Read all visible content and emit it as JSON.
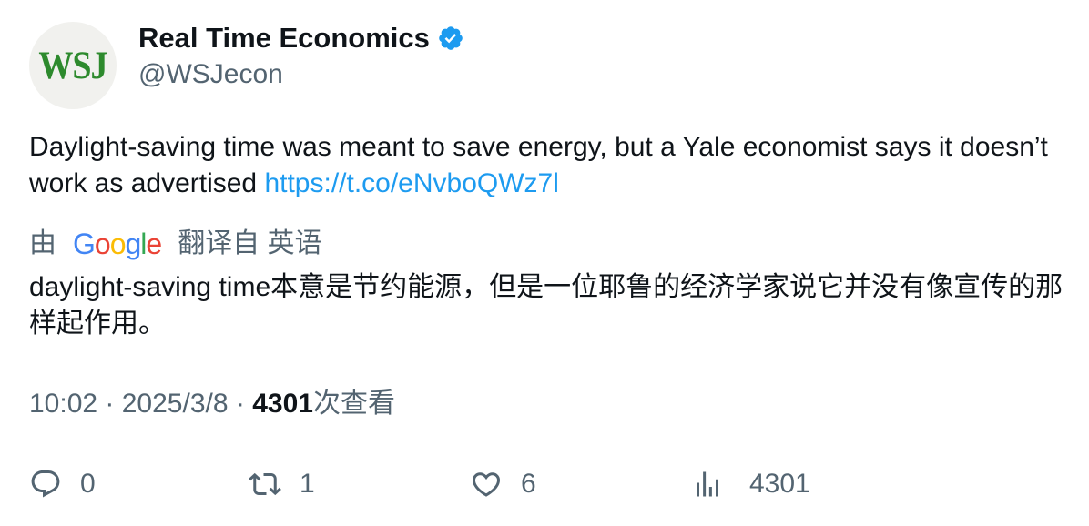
{
  "author": {
    "avatar_text": "WSJ",
    "display_name": "Real Time Economics",
    "handle": "@WSJecon",
    "verified": true
  },
  "tweet": {
    "text": "Daylight-saving time was meant to save energy, but a Yale economist says it doesn’t work as advertised ",
    "link": "https://t.co/eNvboQWz7l"
  },
  "translation": {
    "prefix": "由",
    "provider_letters": [
      "G",
      "o",
      "o",
      "g",
      "l",
      "e"
    ],
    "suffix": "翻译自 英语",
    "text": "daylight-saving time本意是节约能源，但是一位耶鲁的经济学家说它并没有像宣传的那样起作用。"
  },
  "meta": {
    "time": "10:02",
    "separator": " · ",
    "date": "2025/3/8",
    "views_count": "4301",
    "views_label": "次查看"
  },
  "actions": {
    "reply_count": "0",
    "retweet_count": "1",
    "like_count": "6",
    "views_count": "4301"
  },
  "colors": {
    "link": "#1d9bf0",
    "secondary_text": "#536471",
    "verified": "#1d9bf0",
    "wsj_green": "#2d8a2d"
  },
  "icons": {
    "verified": "verified-badge-icon",
    "reply": "reply-icon",
    "retweet": "retweet-icon",
    "like": "heart-icon",
    "views": "bar-chart-icon"
  }
}
